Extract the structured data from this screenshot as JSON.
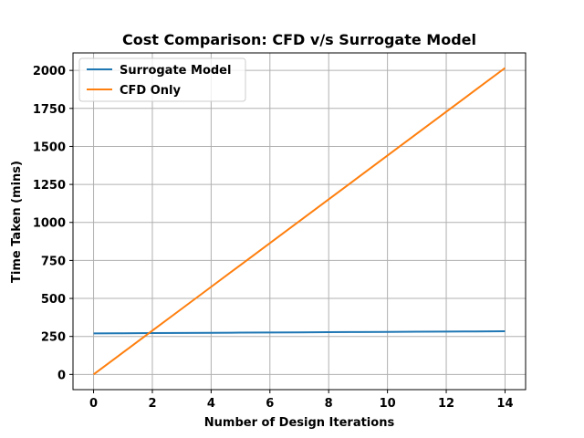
{
  "chart_data": {
    "type": "line",
    "title": "Cost Comparison: CFD v/s Surrogate Model",
    "xlabel": "Number of Design Iterations",
    "ylabel": "Time Taken (mins)",
    "xlim": [
      -0.7,
      14.7
    ],
    "ylim": [
      -100,
      2115
    ],
    "xticks": [
      0,
      2,
      4,
      6,
      8,
      10,
      12,
      14
    ],
    "xtick_labels": [
      "0",
      "2",
      "4",
      "6",
      "8",
      "10",
      "12",
      "14"
    ],
    "yticks": [
      0,
      250,
      500,
      750,
      1000,
      1250,
      1500,
      1750,
      2000
    ],
    "ytick_labels": [
      "0",
      "250",
      "500",
      "750",
      "1000",
      "1250",
      "1500",
      "1750",
      "2000"
    ],
    "grid": true,
    "legend_position": "top-left",
    "series": [
      {
        "name": "Surrogate Model",
        "color": "#1f77b4",
        "x": [
          0,
          1,
          2,
          3,
          4,
          5,
          6,
          7,
          8,
          9,
          10,
          11,
          12,
          13,
          14
        ],
        "y": [
          270,
          271,
          272,
          273,
          274,
          275,
          276,
          277,
          278,
          279,
          280,
          281,
          282,
          283,
          284
        ]
      },
      {
        "name": "CFD Only",
        "color": "#ff7f0e",
        "x": [
          0,
          1,
          2,
          3,
          4,
          5,
          6,
          7,
          8,
          9,
          10,
          11,
          12,
          13,
          14
        ],
        "y": [
          0,
          144,
          288,
          432,
          576,
          720,
          864,
          1008,
          1152,
          1296,
          1440,
          1584,
          1728,
          1872,
          2016
        ]
      }
    ]
  }
}
